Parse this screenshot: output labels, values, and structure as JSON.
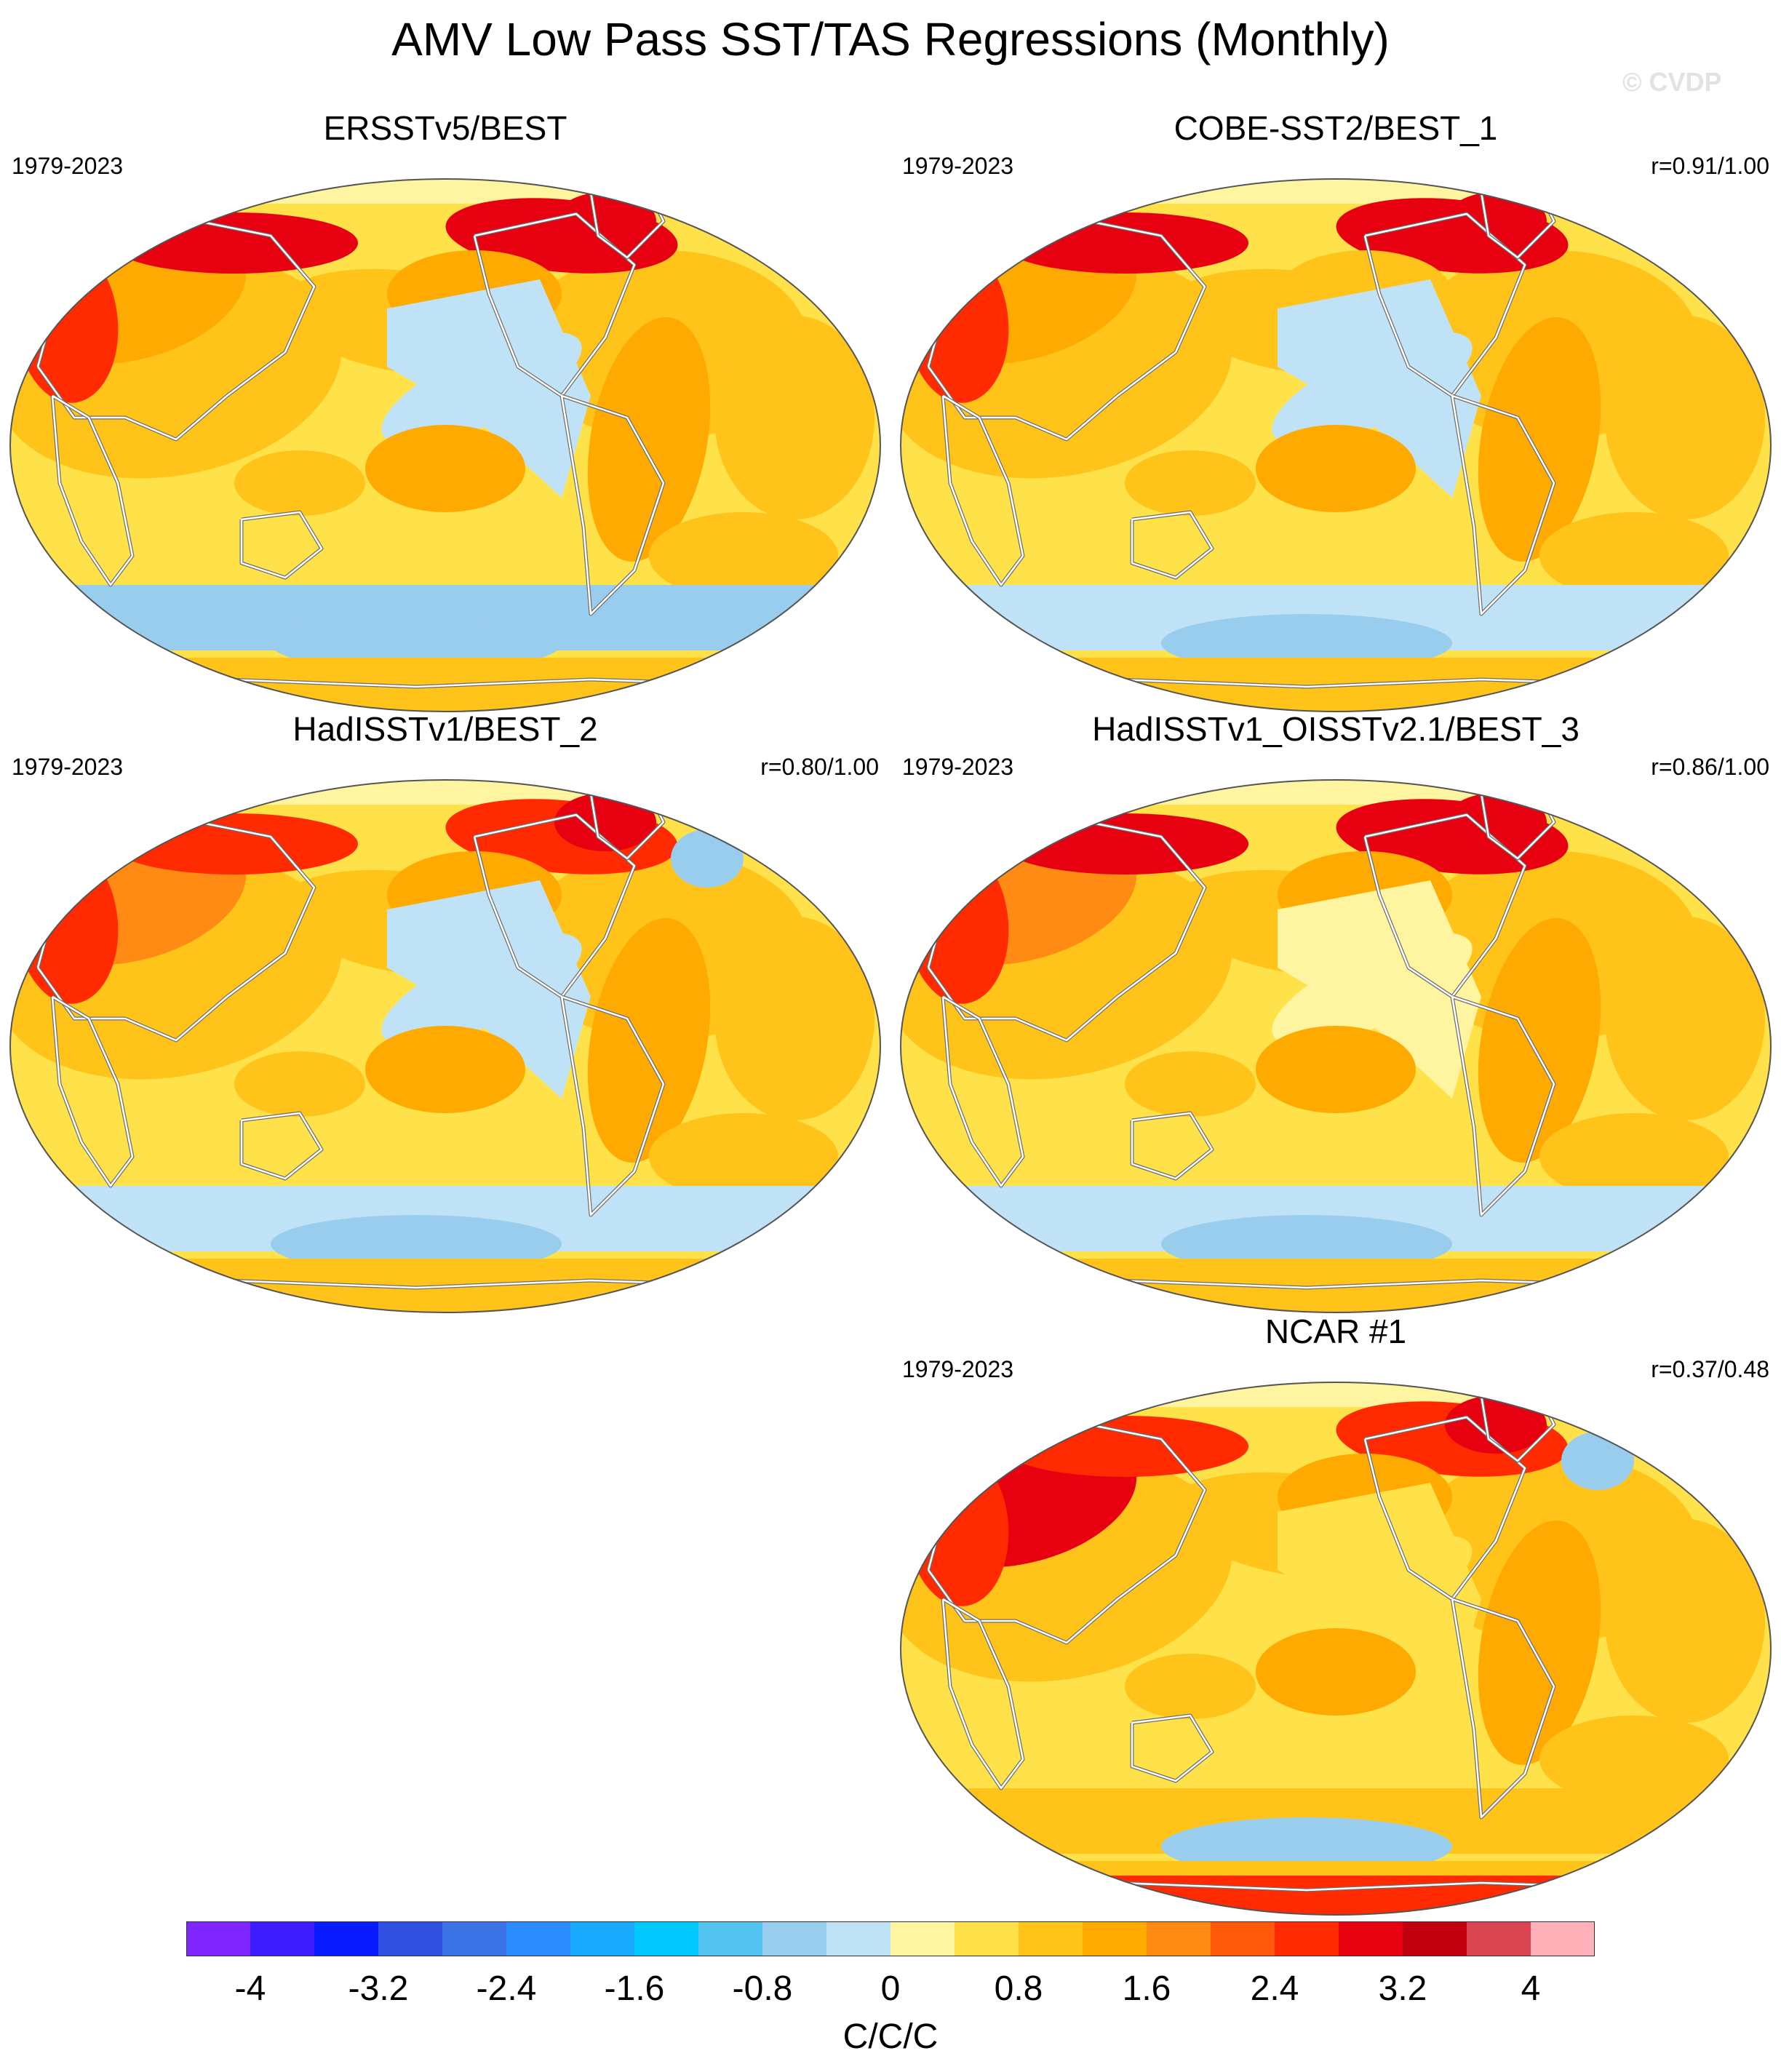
{
  "figure": {
    "title": "AMV Low Pass SST/TAS Regressions (Monthly)",
    "watermark": "© CVDP"
  },
  "panels": [
    {
      "title": "ERSSTv5/BEST",
      "period": "1979-2023",
      "correlation": ""
    },
    {
      "title": "COBE-SST2/BEST_1",
      "period": "1979-2023",
      "correlation": "r=0.91/1.00"
    },
    {
      "title": "HadISSTv1/BEST_2",
      "period": "1979-2023",
      "correlation": "r=0.80/1.00"
    },
    {
      "title": "HadISSTv1_OISSTv2.1/BEST_3",
      "period": "1979-2023",
      "correlation": "r=0.86/1.00"
    },
    {
      "title": "NCAR #1",
      "period": "1979-2023",
      "correlation": "r=0.37/0.48"
    }
  ],
  "colorbar": {
    "units": "C/C/C",
    "tick_labels": [
      "-4",
      "-3.2",
      "-2.4",
      "-1.6",
      "-0.8",
      "0",
      "0.8",
      "1.6",
      "2.4",
      "3.2",
      "4"
    ],
    "colors": [
      "#7f26ff",
      "#3d1cff",
      "#0a1cff",
      "#2f4fe0",
      "#3c73e6",
      "#2a8cff",
      "#19a9ff",
      "#00c8ff",
      "#55c4f2",
      "#99cdee",
      "#bfe2f6",
      "#fff5a0",
      "#ffe14a",
      "#ffc31a",
      "#ffaa00",
      "#ff8a14",
      "#ff5a0a",
      "#ff2a00",
      "#e60010",
      "#c0000c",
      "#d94450",
      "#ffb0b8"
    ]
  },
  "map_palette": {
    "ocean_cool": "#bfe2f6",
    "ocean_cooler": "#99cdee",
    "neutral": "#fff5a0",
    "warm1": "#ffe14a",
    "warm2": "#ffc31a",
    "warm3": "#ffaa00",
    "warm4": "#ff8a14",
    "hot": "#ff2a00",
    "hotter": "#e60010",
    "extreme": "#ffb0b8",
    "coast": "#ffffff",
    "coast_outline": "#6e6e6e",
    "frame": "#555555"
  }
}
